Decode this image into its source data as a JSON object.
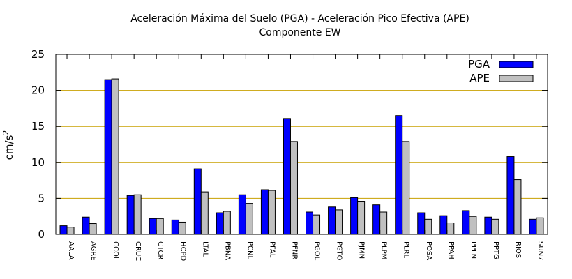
{
  "chart_data": {
    "type": "bar",
    "title": "Aceleración Máxima del Suelo (PGA) -  Aceleración Pico Efectiva (APE)",
    "subtitle": "Componente EW",
    "ylabel_base": "cm/s",
    "ylabel_exp": "2",
    "xlabel": "",
    "ylim": [
      0,
      25
    ],
    "yticks": [
      0,
      5,
      10,
      15,
      20,
      25
    ],
    "grid": true,
    "legend_position": "top-right",
    "categories": [
      "AALA",
      "AGRE",
      "CCOL",
      "CRUC",
      "CTCR",
      "HCPD",
      "LTAL",
      "PBNA",
      "PCNL",
      "PFAL",
      "PFNR",
      "PGOL",
      "PGTO",
      "PJMN",
      "PLPM",
      "PLRL",
      "POSA",
      "PPAH",
      "PPLN",
      "PPTG",
      "RIOS",
      "SUN7"
    ],
    "series": [
      {
        "name": "PGA",
        "color": "#0000ff",
        "values": [
          1.2,
          2.4,
          21.5,
          5.4,
          2.2,
          2.0,
          9.1,
          3.0,
          5.5,
          6.2,
          16.1,
          3.1,
          3.8,
          5.1,
          4.1,
          16.5,
          3.0,
          2.6,
          3.3,
          2.4,
          10.8,
          2.1
        ]
      },
      {
        "name": "APE",
        "color": "#c0c0c0",
        "values": [
          1.0,
          1.5,
          21.6,
          5.5,
          2.2,
          1.7,
          5.9,
          3.2,
          4.3,
          6.1,
          12.9,
          2.7,
          3.4,
          4.6,
          3.1,
          12.9,
          2.1,
          1.6,
          2.5,
          2.1,
          7.6,
          2.3
        ]
      }
    ],
    "colors": {
      "grid": "#c8a000",
      "frame": "#000000"
    }
  }
}
